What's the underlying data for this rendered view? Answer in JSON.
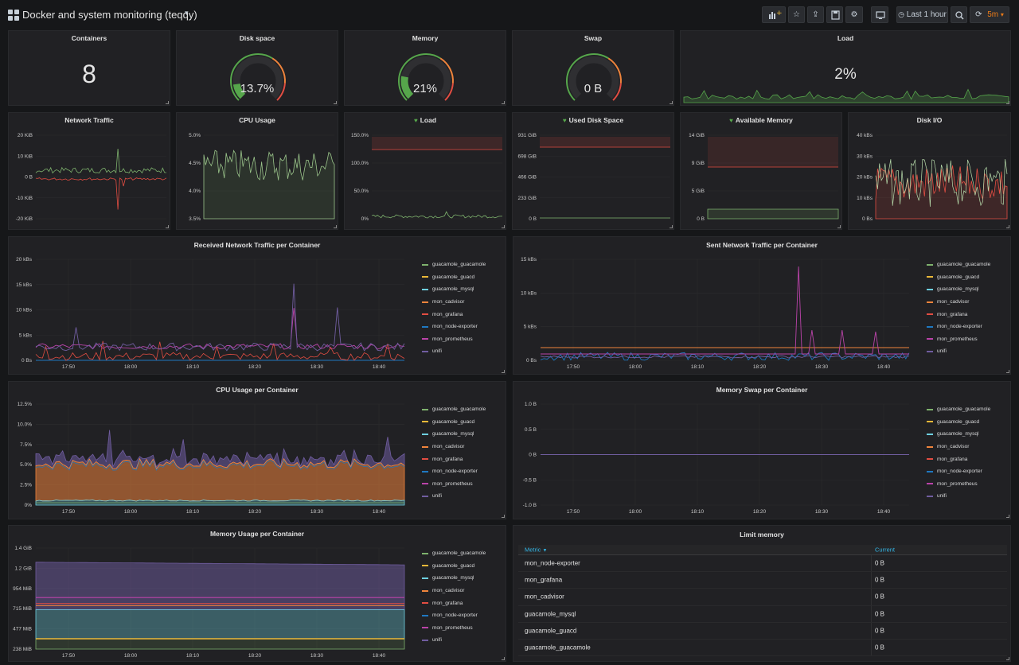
{
  "dashboard": {
    "title": "Docker and system monitoring (teqqy)"
  },
  "toolbar": {
    "time_range": "Last 1 hour",
    "refresh": "5m"
  },
  "colors": {
    "green": "#7eb26d",
    "red": "#e24d42",
    "yellow": "#eab839",
    "cyan": "#6ed0e0",
    "orange": "#ef843c",
    "blue": "#1f78c1",
    "pink": "#ba43a9",
    "purple": "#705da0",
    "gauge_green": "#56a64b"
  },
  "stats": {
    "containers": {
      "title": "Containers",
      "value": "8"
    },
    "disk": {
      "title": "Disk space",
      "value": "13.7%",
      "fraction": 0.137
    },
    "memory": {
      "title": "Memory",
      "value": "21%",
      "fraction": 0.21
    },
    "swap": {
      "title": "Swap",
      "value": "0 B",
      "fraction": 0
    },
    "load": {
      "title": "Load",
      "value": "2%"
    }
  },
  "small_charts": [
    {
      "key": "net",
      "title": "Network Traffic",
      "heart": false,
      "yticks": [
        "20 KiB",
        "10 KiB",
        "0 B",
        "-10 KiB",
        "-20 KiB"
      ]
    },
    {
      "key": "cpu",
      "title": "CPU Usage",
      "heart": false,
      "yticks": [
        "5.0%",
        "4.5%",
        "4.0%",
        "3.5%"
      ]
    },
    {
      "key": "load",
      "title": "Load",
      "heart": true,
      "yticks": [
        "150.0%",
        "100.0%",
        "50.0%",
        "0%"
      ]
    },
    {
      "key": "disk",
      "title": "Used Disk Space",
      "heart": true,
      "yticks": [
        "931 GiB",
        "698 GiB",
        "466 GiB",
        "233 GiB",
        "0 B"
      ]
    },
    {
      "key": "mem",
      "title": "Available Memory",
      "heart": true,
      "yticks": [
        "14 GiB",
        "9 GiB",
        "5 GiB",
        "0 B"
      ]
    },
    {
      "key": "io",
      "title": "Disk I/O",
      "heart": false,
      "yticks": [
        "40 kBs",
        "30 kBs",
        "20 kBs",
        "10 kBs",
        "0 Bs"
      ]
    }
  ],
  "legend": [
    "guacamole_guacamole",
    "guacamole_guacd",
    "guacamole_mysql",
    "mon_cadvisor",
    "mon_grafana",
    "mon_node-exporter",
    "mon_prometheus",
    "unifi"
  ],
  "xticks": [
    "17:50",
    "18:00",
    "18:10",
    "18:20",
    "18:30",
    "18:40"
  ],
  "big_charts": [
    {
      "key": "rx",
      "title": "Received Network Traffic per Container",
      "yticks": [
        "20 kBs",
        "15 kBs",
        "10 kBs",
        "5 kBs",
        "0 Bs"
      ]
    },
    {
      "key": "tx",
      "title": "Sent Network Traffic per Container",
      "yticks": [
        "15 kBs",
        "10 kBs",
        "5 kBs",
        "0 Bs"
      ]
    },
    {
      "key": "cpuc",
      "title": "CPU Usage per Container",
      "yticks": [
        "12.5%",
        "10.0%",
        "7.5%",
        "5.0%",
        "2.5%",
        "0%"
      ]
    },
    {
      "key": "swapc",
      "title": "Memory Swap per Container",
      "yticks": [
        "1.0 B",
        "0.5 B",
        "0 B",
        "-0.5 B",
        "-1.0 B"
      ]
    },
    {
      "key": "memc",
      "title": "Memory Usage per Container",
      "yticks": [
        "1.4 GiB",
        "1.2 GiB",
        "954 MiB",
        "715 MiB",
        "477 MiB",
        "238 MiB"
      ]
    }
  ],
  "limit_table": {
    "title": "Limit memory",
    "col_metric": "Metric",
    "col_current": "Current",
    "rows": [
      {
        "metric": "mon_node-exporter",
        "current": "0 B"
      },
      {
        "metric": "mon_grafana",
        "current": "0 B"
      },
      {
        "metric": "mon_cadvisor",
        "current": "0 B"
      },
      {
        "metric": "guacamole_mysql",
        "current": "0 B"
      },
      {
        "metric": "guacamole_guacd",
        "current": "0 B"
      },
      {
        "metric": "guacamole_guacamole",
        "current": "0 B"
      }
    ]
  }
}
